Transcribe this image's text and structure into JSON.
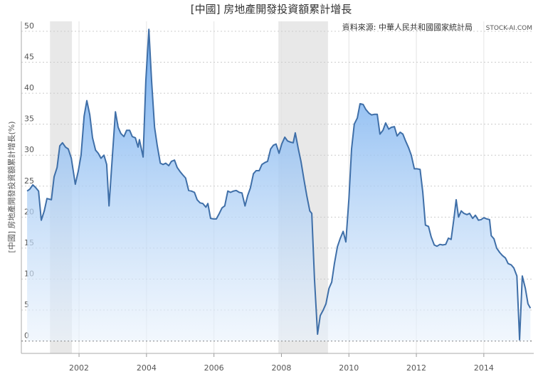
{
  "chart_data": {
    "type": "area",
    "title": "[中國] 房地產開發投資額累計增長",
    "source": "資料來源: 中華人民共和國國家統計局",
    "watermark": "STOCK-AI.COM",
    "ylabel": "[中國] 房地產開發投資額累計增長(%)",
    "x": [
      2000.46,
      2000.54,
      2000.63,
      2000.71,
      2000.8,
      2000.88,
      2000.97,
      2001.05,
      2001.18,
      2001.26,
      2001.35,
      2001.43,
      2001.51,
      2001.6,
      2001.68,
      2001.77,
      2001.89,
      2001.98,
      2002.06,
      2002.15,
      2002.23,
      2002.32,
      2002.4,
      2002.49,
      2002.57,
      2002.65,
      2002.74,
      2002.82,
      2002.89,
      2002.99,
      2003.08,
      2003.16,
      2003.24,
      2003.33,
      2003.41,
      2003.5,
      2003.58,
      2003.67,
      2003.75,
      2003.79,
      2003.9,
      2003.98,
      2004.07,
      2004.15,
      2004.24,
      2004.32,
      2004.41,
      2004.49,
      2004.57,
      2004.66,
      2004.74,
      2004.83,
      2004.91,
      2005.0,
      2005.08,
      2005.16,
      2005.25,
      2005.33,
      2005.42,
      2005.5,
      2005.59,
      2005.67,
      2005.76,
      2005.82,
      2005.9,
      2005.99,
      2006.07,
      2006.16,
      2006.24,
      2006.32,
      2006.41,
      2006.49,
      2006.58,
      2006.66,
      2006.75,
      2006.83,
      2006.92,
      2007.0,
      2007.08,
      2007.17,
      2007.25,
      2007.34,
      2007.42,
      2007.51,
      2007.59,
      2007.68,
      2007.76,
      2007.84,
      2007.93,
      2008.01,
      2008.1,
      2008.18,
      2008.27,
      2008.35,
      2008.41,
      2008.5,
      2008.58,
      2008.67,
      2008.75,
      2008.84,
      2008.9,
      2008.98,
      2009.07,
      2009.15,
      2009.24,
      2009.32,
      2009.41,
      2009.49,
      2009.57,
      2009.66,
      2009.74,
      2009.83,
      2009.91,
      2010.0,
      2010.08,
      2010.16,
      2010.25,
      2010.33,
      2010.42,
      2010.5,
      2010.59,
      2010.67,
      2010.76,
      2010.84,
      2010.92,
      2011.01,
      2011.09,
      2011.18,
      2011.26,
      2011.35,
      2011.43,
      2011.52,
      2011.6,
      2011.68,
      2011.77,
      2011.85,
      2011.94,
      2012.02,
      2012.11,
      2012.19,
      2012.27,
      2012.36,
      2012.44,
      2012.53,
      2012.61,
      2012.7,
      2012.78,
      2012.87,
      2012.95,
      2013.03,
      2013.12,
      2013.18,
      2013.25,
      2013.33,
      2013.41,
      2013.5,
      2013.58,
      2013.67,
      2013.75,
      2013.84,
      2013.92,
      2014.0,
      2014.09,
      2014.17,
      2014.22,
      2014.3,
      2014.38,
      2014.47,
      2014.55,
      2014.64,
      2014.72,
      2014.81,
      2014.89,
      2014.98,
      2015.06,
      2015.14,
      2015.23,
      2015.31,
      2015.38
    ],
    "values": [
      24.2,
      24.5,
      25.2,
      24.8,
      24.2,
      19.5,
      21,
      23,
      22.8,
      26.5,
      28,
      31.5,
      32,
      31.3,
      31,
      29.5,
      25.3,
      27.5,
      30,
      36.3,
      38.8,
      36.5,
      32.8,
      30.8,
      30.3,
      29.5,
      30,
      28.5,
      21.8,
      30,
      37,
      34.5,
      33.5,
      33,
      34,
      34,
      33,
      32.8,
      31.3,
      32.5,
      29.7,
      42,
      50.3,
      42,
      34.5,
      31.5,
      28.7,
      28.5,
      28.7,
      28.3,
      29,
      29.2,
      28,
      27.3,
      26.8,
      26.3,
      24.3,
      24.2,
      24,
      22.8,
      22.3,
      22.2,
      21.6,
      22.2,
      19.8,
      19.7,
      19.7,
      20.6,
      21.5,
      21.8,
      24.2,
      24,
      24.2,
      24.3,
      24,
      23.9,
      21.8,
      23.5,
      24.7,
      27,
      27.5,
      27.5,
      28.5,
      28.8,
      29,
      31,
      31.6,
      31.8,
      30.3,
      31.8,
      32.9,
      32.3,
      32.1,
      32,
      33.6,
      31,
      29,
      26,
      23.5,
      21,
      20.6,
      10,
      1.1,
      4.1,
      5,
      6,
      8.5,
      9.5,
      12.5,
      15.2,
      16.5,
      17.7,
      16,
      23,
      31,
      35,
      36,
      38.3,
      38.2,
      37.4,
      36.8,
      36.5,
      36.6,
      36.6,
      33.4,
      34,
      35.2,
      34.2,
      34.5,
      34.6,
      33.1,
      33.7,
      33.4,
      32.3,
      31.2,
      30,
      27.8,
      27.8,
      27.7,
      24,
      18.7,
      18.5,
      16.8,
      15.5,
      15.3,
      15.6,
      15.5,
      15.6,
      16.6,
      16.4,
      20,
      22.8,
      20,
      21,
      20.6,
      20.4,
      20.6,
      19.8,
      20.3,
      19.5,
      19.6,
      19.9,
      19.7,
      19.6,
      17,
      16.5,
      15,
      14.3,
      13.8,
      13.4,
      12.5,
      12.3,
      11.8,
      10.5,
      0.2,
      10.5,
      8.5,
      6,
      5.3
    ],
    "color": "#3f6fa8",
    "shaded_ranges": [
      [
        2001.14,
        2001.79
      ],
      [
        2007.91,
        2009.38
      ]
    ],
    "xlim": [
      2000.29,
      2015.48
    ],
    "xticks": [
      2002,
      2004,
      2006,
      2008,
      2010,
      2012,
      2014
    ],
    "ylim": [
      -2,
      51.6
    ],
    "yticks": [
      0,
      5,
      10,
      15,
      20,
      25,
      30,
      35,
      40,
      45,
      50
    ],
    "grid": true
  }
}
